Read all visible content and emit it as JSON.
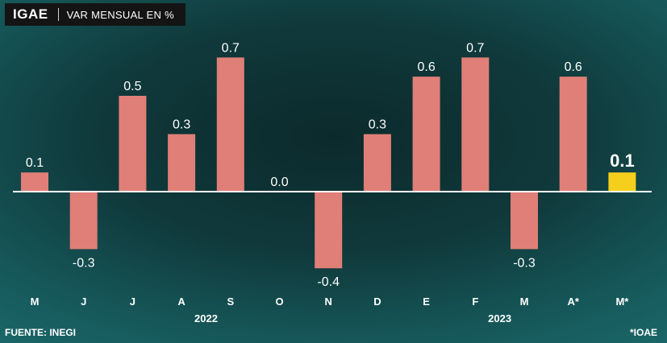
{
  "header": {
    "title": "IGAE",
    "subtitle": "VAR MENSUAL EN %"
  },
  "footer": {
    "source": "FUENTE: INEGI",
    "note": "*IOAE"
  },
  "colors": {
    "bar": "#e07f77",
    "highlight": "#f5cf1b",
    "label": "#ffffff",
    "axis": "#ffffff"
  },
  "chart_data": {
    "type": "bar",
    "categories": [
      "M",
      "J",
      "J",
      "A",
      "S",
      "O",
      "N",
      "D",
      "E",
      "F",
      "M",
      "A*",
      "M*"
    ],
    "values": [
      0.1,
      -0.3,
      0.5,
      0.3,
      0.7,
      0.0,
      -0.4,
      0.3,
      0.6,
      0.7,
      -0.3,
      0.6,
      0.1
    ],
    "data_labels": [
      "0.1",
      "-0.3",
      "0.5",
      "0.3",
      "0.7",
      "0.0",
      "-0.4",
      "0.3",
      "0.6",
      "0.7",
      "-0.3",
      "0.6",
      "0.1"
    ],
    "highlight_index": 12,
    "year_labels": [
      {
        "label": "2022",
        "category_index": 3.5
      },
      {
        "label": "2023",
        "category_index": 9.5
      }
    ],
    "title": "",
    "xlabel": "",
    "ylabel": "",
    "ylim": [
      -0.47,
      0.8
    ],
    "grid": false,
    "legend": "none"
  }
}
